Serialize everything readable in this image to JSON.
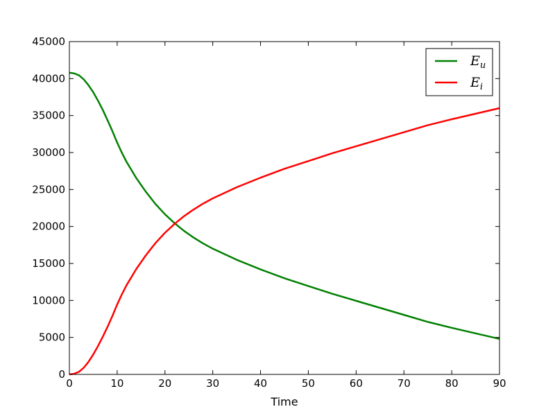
{
  "chart_data": {
    "type": "line",
    "title": "",
    "xlabel": "Time",
    "ylabel": "",
    "xlim": [
      0,
      90
    ],
    "ylim": [
      0,
      45000
    ],
    "xticks": [
      0,
      10,
      20,
      30,
      40,
      50,
      60,
      70,
      80,
      90
    ],
    "yticks": [
      0,
      5000,
      10000,
      15000,
      20000,
      25000,
      30000,
      35000,
      40000,
      45000
    ],
    "grid": false,
    "legend": "top-right",
    "series": [
      {
        "name_base": "E",
        "name_sub": "u",
        "color": "#008000",
        "x": [
          0,
          1,
          2,
          3,
          4,
          5,
          6,
          7,
          8,
          9,
          10,
          11,
          12,
          14,
          16,
          18,
          20,
          22,
          24,
          25,
          26,
          28,
          30,
          35,
          40,
          45,
          50,
          55,
          60,
          65,
          70,
          75,
          80,
          85,
          90
        ],
        "y": [
          40800,
          40700,
          40450,
          39900,
          39100,
          38150,
          37000,
          35750,
          34350,
          32900,
          31350,
          29950,
          28700,
          26550,
          24700,
          23050,
          21650,
          20450,
          19400,
          18950,
          18500,
          17700,
          17000,
          15500,
          14200,
          13000,
          11950,
          10900,
          9950,
          9000,
          8050,
          7100,
          6300,
          5550,
          4800
        ]
      },
      {
        "name_base": "E",
        "name_sub": "i",
        "color": "#ff0000",
        "x": [
          0,
          1,
          2,
          3,
          4,
          5,
          6,
          7,
          8,
          9,
          10,
          11,
          12,
          14,
          16,
          18,
          20,
          22,
          24,
          25,
          26,
          28,
          30,
          35,
          40,
          45,
          50,
          55,
          60,
          65,
          70,
          75,
          80,
          85,
          90
        ],
        "y": [
          0,
          80,
          350,
          900,
          1700,
          2700,
          3850,
          5100,
          6450,
          7900,
          9450,
          10850,
          12100,
          14250,
          16100,
          17750,
          19150,
          20350,
          21400,
          21850,
          22300,
          23100,
          23800,
          25300,
          26600,
          27800,
          28850,
          29900,
          30850,
          31800,
          32750,
          33700,
          34500,
          35250,
          36000
        ]
      }
    ]
  }
}
